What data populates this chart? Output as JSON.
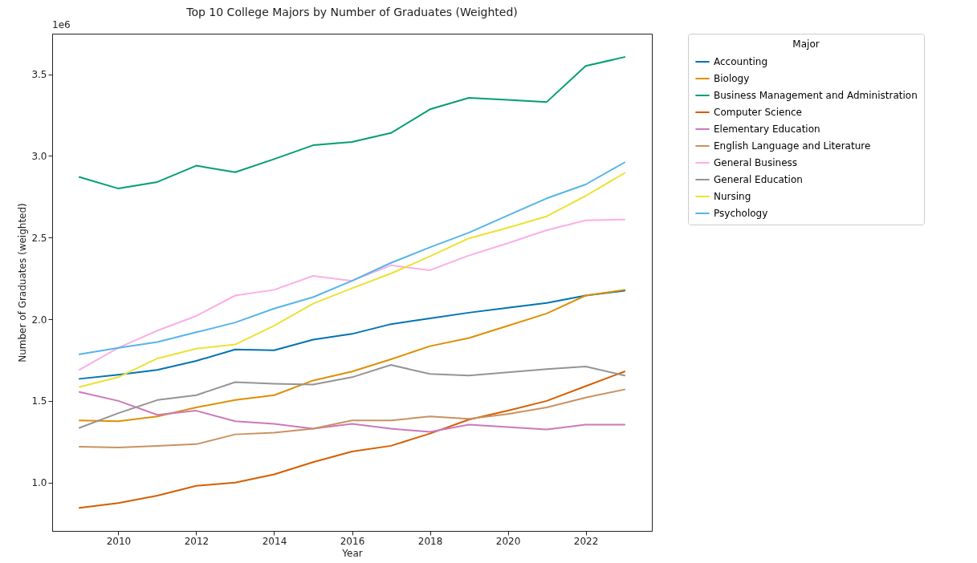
{
  "chart_data": {
    "type": "line",
    "title": "Top 10 College Majors by Number of Graduates (Weighted)",
    "xlabel": "Year",
    "ylabel": "Number of Graduates (weighted)",
    "legend_title": "Major",
    "legend": "right",
    "grid": false,
    "annotations": [
      "1e6"
    ],
    "x": [
      2009,
      2010,
      2011,
      2012,
      2013,
      2014,
      2015,
      2016,
      2017,
      2018,
      2019,
      2020,
      2021,
      2022,
      2023
    ],
    "xlim": [
      2008.3,
      2023.7
    ],
    "xticks": [
      2010,
      2012,
      2014,
      2016,
      2018,
      2020,
      2022
    ],
    "ylim": [
      0.704,
      3.748
    ],
    "yticks": [
      {
        "value": 1,
        "label": "1.0"
      },
      {
        "value": 1.5,
        "label": "1.5"
      },
      {
        "value": 2,
        "label": "2.0"
      },
      {
        "value": 2.5,
        "label": "2.5"
      },
      {
        "value": 3,
        "label": "3.0"
      },
      {
        "value": 3.5,
        "label": "3.5"
      }
    ],
    "series": [
      {
        "name": "Accounting",
        "color": "#0173b2",
        "values": [
          1.635,
          1.66,
          1.69,
          1.745,
          1.815,
          1.81,
          1.875,
          1.91,
          1.97,
          2.005,
          2.04,
          2.07,
          2.1,
          2.145,
          2.175
        ]
      },
      {
        "name": "Biology",
        "color": "#de8f05",
        "values": [
          1.38,
          1.375,
          1.405,
          1.46,
          1.505,
          1.535,
          1.625,
          1.68,
          1.755,
          1.835,
          1.885,
          1.96,
          2.035,
          2.145,
          2.18
        ]
      },
      {
        "name": "Business Management and Administration",
        "color": "#029e73",
        "values": [
          2.87,
          2.8,
          2.84,
          2.94,
          2.9,
          2.98,
          3.065,
          3.085,
          3.14,
          3.285,
          3.355,
          3.343,
          3.33,
          3.55,
          3.605
        ]
      },
      {
        "name": "Computer Science",
        "color": "#d55e00",
        "values": [
          0.845,
          0.875,
          0.92,
          0.98,
          1.0,
          1.05,
          1.125,
          1.19,
          1.225,
          1.3,
          1.385,
          1.44,
          1.5,
          1.59,
          1.68
        ]
      },
      {
        "name": "Elementary Education",
        "color": "#cc78bc",
        "values": [
          1.555,
          1.5,
          1.415,
          1.44,
          1.375,
          1.36,
          1.33,
          1.36,
          1.33,
          1.31,
          1.355,
          1.34,
          1.325,
          1.355,
          1.355
        ]
      },
      {
        "name": "English Language and Literature",
        "color": "#ca9161",
        "values": [
          1.22,
          1.215,
          1.225,
          1.235,
          1.295,
          1.305,
          1.33,
          1.38,
          1.38,
          1.405,
          1.39,
          1.42,
          1.46,
          1.52,
          1.57
        ]
      },
      {
        "name": "General Business",
        "color": "#fbafe4",
        "values": [
          1.69,
          1.825,
          1.93,
          2.02,
          2.145,
          2.18,
          2.265,
          2.235,
          2.33,
          2.3,
          2.39,
          2.465,
          2.545,
          2.605,
          2.61
        ]
      },
      {
        "name": "General Education",
        "color": "#949494",
        "values": [
          1.335,
          1.425,
          1.505,
          1.535,
          1.615,
          1.605,
          1.6,
          1.645,
          1.72,
          1.665,
          1.655,
          1.675,
          1.695,
          1.71,
          1.655
        ]
      },
      {
        "name": "Nursing",
        "color": "#ece133",
        "values": [
          1.585,
          1.645,
          1.76,
          1.82,
          1.845,
          1.96,
          2.095,
          2.19,
          2.28,
          2.385,
          2.495,
          2.56,
          2.63,
          2.755,
          2.895
        ]
      },
      {
        "name": "Psychology",
        "color": "#56b4e9",
        "values": [
          1.785,
          1.825,
          1.86,
          1.92,
          1.98,
          2.065,
          2.135,
          2.235,
          2.345,
          2.44,
          2.53,
          2.635,
          2.74,
          2.825,
          2.96
        ]
      }
    ]
  }
}
